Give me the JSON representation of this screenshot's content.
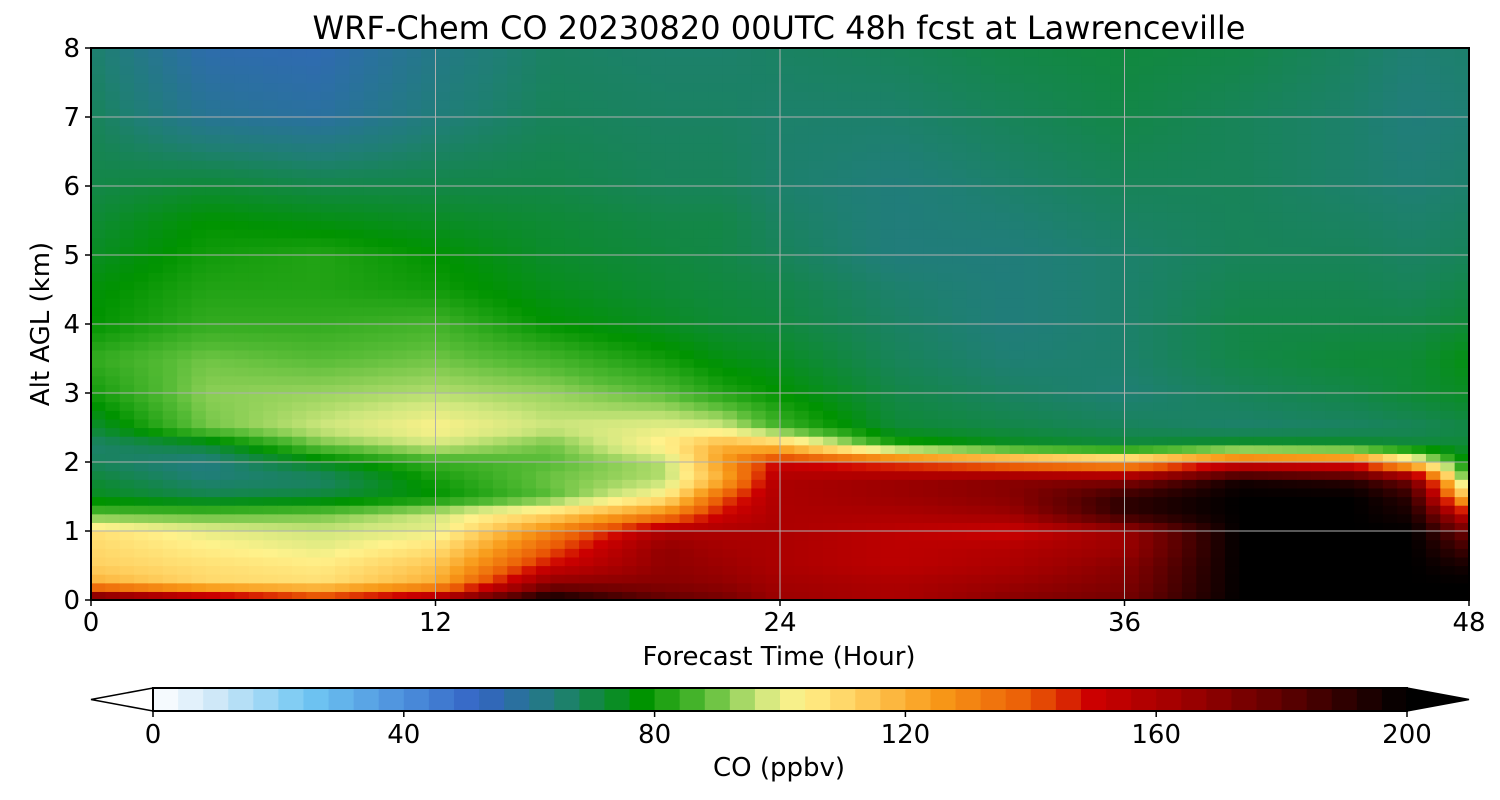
{
  "chart_data": {
    "type": "heatmap",
    "title": "WRF-Chem CO  20230820 00UTC 48h fcst at Lawrenceville",
    "xlabel": "Forecast Time (Hour)",
    "ylabel": "Alt AGL (km)",
    "xlim": [
      0,
      48
    ],
    "ylim": [
      0,
      8
    ],
    "xticks": [
      0,
      12,
      24,
      36,
      48
    ],
    "yticks": [
      0,
      1,
      2,
      3,
      4,
      5,
      6,
      7,
      8
    ],
    "grid": true,
    "colorbar": {
      "label": "CO  (ppbv)",
      "range": [
        0,
        200
      ],
      "ticks": [
        0,
        40,
        80,
        120,
        160,
        200
      ],
      "extend": "both",
      "orientation": "horizontal",
      "stops": [
        {
          "v": 0,
          "c": "#ffffff"
        },
        {
          "v": 10,
          "c": "#cfe8f8"
        },
        {
          "v": 25,
          "c": "#6fc6f2"
        },
        {
          "v": 40,
          "c": "#4c8fdc"
        },
        {
          "v": 52,
          "c": "#3464c4"
        },
        {
          "v": 65,
          "c": "#1f7f74"
        },
        {
          "v": 78,
          "c": "#009300"
        },
        {
          "v": 88,
          "c": "#55bb35"
        },
        {
          "v": 97,
          "c": "#cfe77e"
        },
        {
          "v": 103,
          "c": "#fff28c"
        },
        {
          "v": 112,
          "c": "#ffd060"
        },
        {
          "v": 125,
          "c": "#f89a18"
        },
        {
          "v": 140,
          "c": "#ea5a05"
        },
        {
          "v": 150,
          "c": "#cc0000"
        },
        {
          "v": 165,
          "c": "#9c0000"
        },
        {
          "v": 180,
          "c": "#600000"
        },
        {
          "v": 192,
          "c": "#250000"
        },
        {
          "v": 200,
          "c": "#000000"
        }
      ]
    },
    "times": [
      0,
      4,
      8,
      12,
      16,
      20,
      22,
      24,
      28,
      32,
      36,
      40,
      44,
      46,
      48
    ],
    "altitudes": [
      0,
      0.25,
      0.5,
      0.75,
      1,
      1.25,
      1.5,
      1.75,
      2,
      2.25,
      2.5,
      3,
      3.5,
      4,
      4.5,
      5,
      5.5,
      6,
      7,
      8
    ],
    "co_ppbv": [
      [
        185,
        165,
        150,
        165,
        200,
        180,
        175,
        165,
        160,
        170,
        175,
        200,
        200,
        200,
        200
      ],
      [
        120,
        110,
        108,
        120,
        170,
        170,
        168,
        163,
        160,
        165,
        172,
        200,
        200,
        200,
        200
      ],
      [
        112,
        108,
        105,
        115,
        150,
        168,
        165,
        160,
        155,
        160,
        170,
        200,
        200,
        200,
        195
      ],
      [
        110,
        104,
        100,
        108,
        140,
        168,
        162,
        160,
        155,
        158,
        165,
        200,
        200,
        200,
        185
      ],
      [
        108,
        100,
        97,
        100,
        130,
        160,
        160,
        160,
        155,
        150,
        165,
        200,
        200,
        200,
        175
      ],
      [
        88,
        88,
        90,
        97,
        110,
        130,
        150,
        160,
        160,
        165,
        190,
        200,
        200,
        195,
        150
      ],
      [
        75,
        70,
        72,
        78,
        88,
        105,
        140,
        160,
        165,
        170,
        190,
        200,
        200,
        190,
        110
      ],
      [
        72,
        65,
        66,
        80,
        90,
        95,
        120,
        160,
        165,
        170,
        170,
        195,
        190,
        175,
        85
      ],
      [
        68,
        63,
        75,
        85,
        88,
        95,
        125,
        150,
        140,
        130,
        120,
        145,
        140,
        110,
        75
      ],
      [
        66,
        72,
        90,
        97,
        90,
        105,
        120,
        115,
        82,
        75,
        72,
        75,
        74,
        72,
        72
      ],
      [
        72,
        90,
        97,
        103,
        97,
        100,
        98,
        86,
        72,
        70,
        68,
        66,
        67,
        68,
        70
      ],
      [
        80,
        92,
        93,
        95,
        93,
        88,
        82,
        78,
        70,
        67,
        65,
        68,
        70,
        72,
        74
      ],
      [
        84,
        90,
        88,
        90,
        86,
        80,
        76,
        74,
        68,
        65,
        66,
        70,
        72,
        72,
        76
      ],
      [
        78,
        84,
        84,
        86,
        78,
        74,
        72,
        71,
        67,
        64,
        66,
        70,
        70,
        70,
        72
      ],
      [
        77,
        82,
        82,
        80,
        75,
        72,
        71,
        70,
        66,
        64,
        66,
        69,
        69,
        68,
        70
      ],
      [
        74,
        80,
        82,
        78,
        73,
        71,
        70,
        68,
        64,
        64,
        66,
        68,
        68,
        67,
        68
      ],
      [
        72,
        78,
        76,
        74,
        72,
        70,
        70,
        67,
        64,
        65,
        67,
        68,
        67,
        66,
        67
      ],
      [
        70,
        72,
        70,
        70,
        70,
        68,
        68,
        66,
        64,
        66,
        68,
        68,
        66,
        65,
        66
      ],
      [
        68,
        60,
        58,
        64,
        68,
        67,
        67,
        66,
        66,
        68,
        70,
        68,
        66,
        64,
        65
      ],
      [
        66,
        56,
        55,
        62,
        67,
        66,
        66,
        67,
        68,
        70,
        71,
        70,
        67,
        65,
        66
      ]
    ]
  }
}
